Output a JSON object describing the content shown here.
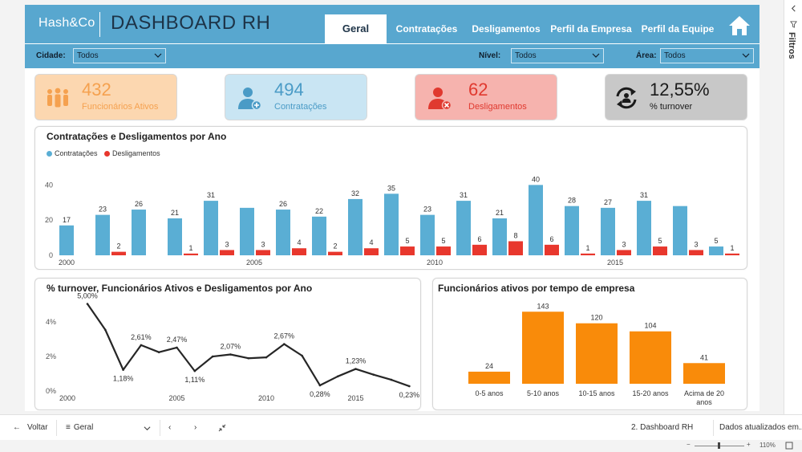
{
  "header": {
    "brand": "Hash&Co",
    "title": "DASHBOARD RH",
    "tabs": [
      {
        "label": "Geral",
        "active": true
      },
      {
        "label": "Contratações",
        "active": false
      },
      {
        "label": "Desligamentos",
        "active": false
      },
      {
        "label": "Perfil da Empresa",
        "active": false
      },
      {
        "label": "Perfil da Equipe",
        "active": false
      }
    ],
    "home_icon": "home-icon"
  },
  "filters": {
    "cidade": {
      "label": "Cidade:",
      "value": "Todos"
    },
    "nivel": {
      "label": "Nível:",
      "value": "Todos"
    },
    "area": {
      "label": "Área:",
      "value": "Todos"
    }
  },
  "kpis": {
    "ativos": {
      "value": "432",
      "label": "Funcionários Ativos",
      "color": "#f5a14f",
      "bg": "#fcd7b0",
      "icon": "people-icon"
    },
    "contratacoes": {
      "value": "494",
      "label": "Contratações",
      "color": "#4a9bc6",
      "bg": "#c9e5f3",
      "icon": "user-add-icon"
    },
    "desligamentos": {
      "value": "62",
      "label": "Desligamentos",
      "color": "#e0392f",
      "bg": "#f6b3ae",
      "icon": "user-remove-icon"
    },
    "turnover": {
      "value": "12,55%",
      "label": "% turnover",
      "color": "#1a1a1a",
      "bg": "#c8c8c8",
      "icon": "cycle-icon"
    }
  },
  "colors": {
    "contratacoes": "#5aaed4",
    "desligamentos": "#e8372d",
    "tenure": "#f98b0a",
    "line": "#262626"
  },
  "panels": {
    "bar_title": "Contratações e Desligamentos por Ano",
    "line_title": "% turnover, Funcionários Ativos e Desligamentos por Ano",
    "tenure_title": "Funcionários ativos por tempo de empresa"
  },
  "chart_data": [
    {
      "type": "bar",
      "title": "Contratações e Desligamentos por Ano",
      "x": [
        2000,
        2001,
        2002,
        2003,
        2004,
        2005,
        2006,
        2007,
        2008,
        2009,
        2010,
        2011,
        2012,
        2013,
        2014,
        2015,
        2016,
        2017,
        2018
      ],
      "x_tick_labels": [
        "2000",
        "2005",
        "2010",
        "2015"
      ],
      "y_ticks": [
        0,
        20,
        40
      ],
      "ylim": [
        0,
        42
      ],
      "legend_position": "top-left",
      "series": [
        {
          "name": "Contratações",
          "values": [
            17,
            23,
            26,
            21,
            31,
            27,
            26,
            22,
            32,
            35,
            23,
            31,
            21,
            40,
            28,
            27,
            31,
            28,
            5
          ],
          "labels": [
            "17",
            "23",
            "26",
            "21",
            "31",
            "",
            "26",
            "22",
            "32",
            "35",
            "23",
            "31",
            "21",
            "40",
            "28",
            "27",
            "31",
            "",
            "5"
          ]
        },
        {
          "name": "Desligamentos",
          "values": [
            null,
            2,
            null,
            1,
            3,
            3,
            4,
            2,
            4,
            5,
            5,
            6,
            8,
            6,
            1,
            3,
            5,
            3,
            1
          ],
          "labels": [
            "",
            "2",
            "",
            "1",
            "3",
            "3",
            "4",
            "2",
            "4",
            "5",
            "5",
            "6",
            "8",
            "6",
            "1",
            "3",
            "5",
            "3",
            "1"
          ]
        }
      ]
    },
    {
      "type": "line",
      "title": "% turnover, Funcionários Ativos e Desligamentos por Ano",
      "x": [
        2000,
        2001,
        2002,
        2003,
        2004,
        2005,
        2006,
        2007,
        2008,
        2009,
        2010,
        2011,
        2012,
        2013,
        2014,
        2015,
        2016,
        2017,
        2018
      ],
      "x_tick_labels": [
        "2000",
        "2005",
        "2010",
        "2015"
      ],
      "y_tick_labels": [
        "0%",
        "2%",
        "4%"
      ],
      "ylim": [
        0,
        5
      ],
      "values": [
        5.0,
        3.5,
        1.18,
        2.61,
        2.2,
        2.47,
        1.11,
        1.95,
        2.07,
        1.85,
        1.9,
        2.67,
        2.0,
        0.28,
        0.8,
        1.23,
        0.9,
        0.6,
        0.23
      ],
      "labels": [
        "5,00%",
        "",
        "1,18%",
        "2,61%",
        "",
        "2,47%",
        "1,11%",
        "",
        "2,07%",
        "",
        "",
        "2,67%",
        "",
        "0,28%",
        "",
        "1,23%",
        "",
        "",
        "0,23%"
      ]
    },
    {
      "type": "bar",
      "title": "Funcionários ativos por tempo de empresa",
      "categories": [
        "0-5 anos",
        "5-10 anos",
        "10-15 anos",
        "15-20 anos",
        "Acima de 20 anos"
      ],
      "values": [
        24,
        143,
        120,
        104,
        41
      ],
      "ylim": [
        0,
        145
      ]
    }
  ],
  "bottombar": {
    "back_label": "Voltar",
    "page_label": "Geral",
    "page_name": "2. Dashboard RH",
    "updated_label": "Dados atualizados em...",
    "zoom": "110%"
  },
  "filters_pane": {
    "label": "Filtros"
  }
}
